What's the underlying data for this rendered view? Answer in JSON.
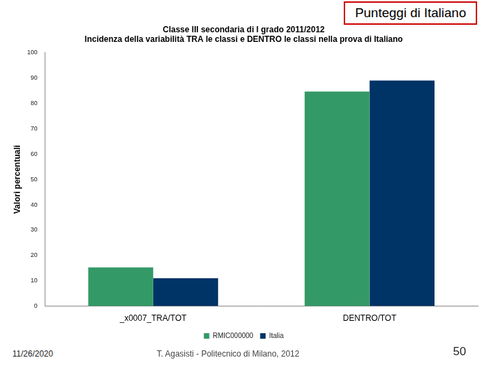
{
  "chart_data": {
    "type": "bar",
    "title": [
      "Classe III secondaria di I grado 2011/2012",
      "Incidenza della variabilità TRA le classi e DENTRO le classi nella prova di Italiano"
    ],
    "y_label": "Valori percentuali",
    "categories": [
      "_x0007_TRA/TOT",
      "DENTRO/TOT"
    ],
    "series": [
      {
        "name": "RMIC000000",
        "color": "#339966",
        "values": [
          15.3,
          84.7
        ]
      },
      {
        "name": "Italia",
        "color": "#003366",
        "values": [
          11,
          89
        ]
      }
    ],
    "ylim": [
      0,
      100
    ],
    "yticks": [
      0,
      10,
      20,
      30,
      40,
      50,
      60,
      70,
      80,
      90,
      100
    ],
    "grid": false,
    "legend": "bottom"
  },
  "slide": {
    "header": "Punteggi di Italiano",
    "date": "11/26/2020",
    "author": "T. Agasisti - Politecnico di Milano, 2012",
    "page": "50"
  }
}
